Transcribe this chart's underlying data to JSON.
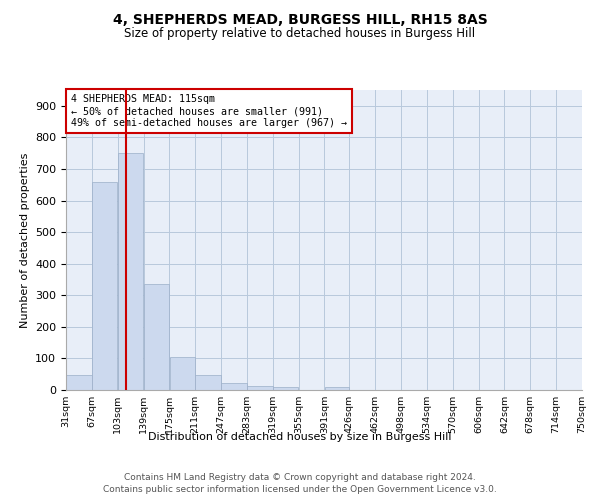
{
  "title": "4, SHEPHERDS MEAD, BURGESS HILL, RH15 8AS",
  "subtitle": "Size of property relative to detached houses in Burgess Hill",
  "xlabel": "Distribution of detached houses by size in Burgess Hill",
  "ylabel": "Number of detached properties",
  "footnote1": "Contains HM Land Registry data © Crown copyright and database right 2024.",
  "footnote2": "Contains public sector information licensed under the Open Government Licence v3.0.",
  "bar_color": "#ccd9ee",
  "bar_edge_color": "#9baec8",
  "grid_color": "#b8c8dc",
  "vline_color": "#cc0000",
  "vline_x": 115,
  "annotation_text": "4 SHEPHERDS MEAD: 115sqm\n← 50% of detached houses are smaller (991)\n49% of semi-detached houses are larger (967) →",
  "annotation_box_color": "#cc0000",
  "bins_left": [
    31,
    67,
    103,
    139,
    175,
    211,
    247,
    283,
    319,
    355,
    391,
    426,
    462,
    498,
    534,
    570,
    606,
    642,
    678,
    714
  ],
  "bins_right": [
    67,
    103,
    139,
    175,
    211,
    247,
    283,
    319,
    355,
    391,
    426,
    462,
    498,
    534,
    570,
    606,
    642,
    678,
    714,
    750
  ],
  "bar_heights": [
    47,
    660,
    750,
    335,
    105,
    48,
    22,
    13,
    10,
    0,
    8,
    0,
    0,
    0,
    0,
    0,
    0,
    0,
    0,
    0
  ],
  "xlim": [
    31,
    750
  ],
  "ylim": [
    0,
    950
  ],
  "yticks": [
    0,
    100,
    200,
    300,
    400,
    500,
    600,
    700,
    800,
    900
  ],
  "xtick_labels": [
    "31sqm",
    "67sqm",
    "103sqm",
    "139sqm",
    "175sqm",
    "211sqm",
    "247sqm",
    "283sqm",
    "319sqm",
    "355sqm",
    "391sqm",
    "426sqm",
    "462sqm",
    "498sqm",
    "534sqm",
    "570sqm",
    "606sqm",
    "642sqm",
    "678sqm",
    "714sqm",
    "750sqm"
  ],
  "xtick_positions": [
    31,
    67,
    103,
    139,
    175,
    211,
    247,
    283,
    319,
    355,
    391,
    426,
    462,
    498,
    534,
    570,
    606,
    642,
    678,
    714,
    750
  ],
  "background_color": "#ffffff",
  "plot_bg_color": "#e8eef8"
}
